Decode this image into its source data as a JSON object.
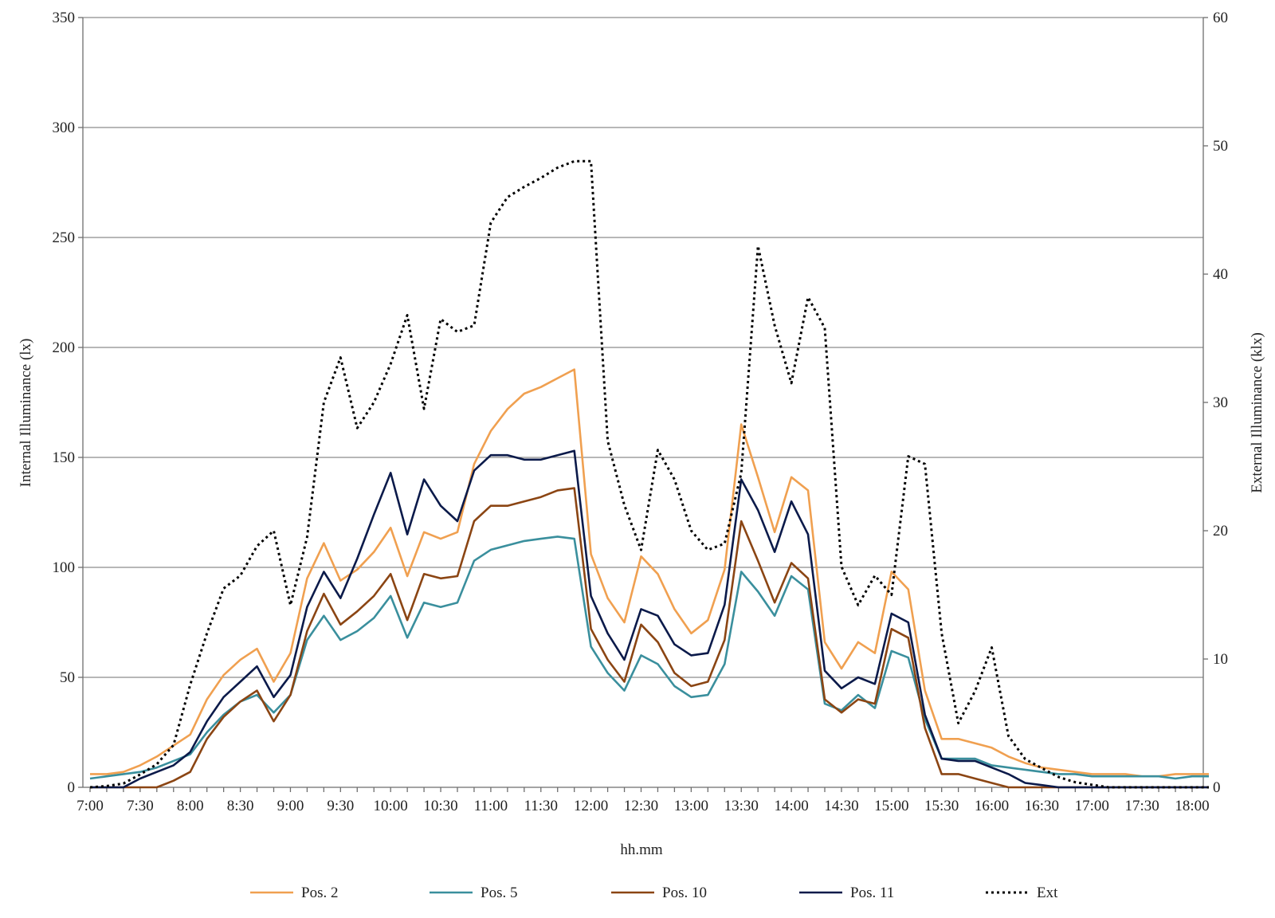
{
  "chart_data": {
    "type": "line",
    "xlabel": "hh.mm",
    "ylabel": "Internal Illuminance (lx)",
    "y2label": "External Illuminance (klx)",
    "ylim": [
      0,
      350
    ],
    "y2lim": [
      0,
      60
    ],
    "yticks": [
      "0",
      "50",
      "100",
      "150",
      "200",
      "250",
      "300",
      "350"
    ],
    "y2ticks": [
      "0",
      "10",
      "20",
      "30",
      "40",
      "50",
      "60"
    ],
    "x_start_min": 420,
    "x_end_min": 1080,
    "x_step_min": 10,
    "xtick_labels": [
      "7:00",
      "7:30",
      "8:00",
      "8:30",
      "9:00",
      "9:30",
      "10:00",
      "10:30",
      "11:00",
      "11:30",
      "12:00",
      "12:30",
      "13:00",
      "13:30",
      "14:00",
      "14:30",
      "15:00",
      "15:30",
      "16:00",
      "16:30",
      "17:00",
      "17:30",
      "18:00"
    ],
    "grid": true,
    "legend_position": "bottom",
    "series": [
      {
        "name": "Pos. 2",
        "axis": "left",
        "color": "#f0a050",
        "style": "solid",
        "values": [
          6,
          6,
          7,
          10,
          14,
          19,
          24,
          40,
          51,
          58,
          63,
          48,
          61,
          95,
          111,
          94,
          99,
          107,
          118,
          96,
          116,
          113,
          116,
          147,
          162,
          172,
          179,
          182,
          186,
          190,
          106,
          86,
          75,
          105,
          97,
          81,
          70,
          76,
          99,
          165,
          141,
          116,
          141,
          135,
          66,
          54,
          66,
          61,
          98,
          90,
          44,
          22,
          22,
          20,
          18,
          14,
          11,
          9,
          8,
          7,
          6,
          6,
          6,
          5,
          5,
          6,
          6,
          6
        ]
      },
      {
        "name": "Pos. 5",
        "axis": "left",
        "color": "#3a8f9d",
        "style": "solid",
        "values": [
          4,
          5,
          6,
          7,
          9,
          12,
          15,
          25,
          33,
          39,
          42,
          34,
          42,
          67,
          78,
          67,
          71,
          77,
          87,
          68,
          84,
          82,
          84,
          103,
          108,
          110,
          112,
          113,
          114,
          113,
          64,
          52,
          44,
          60,
          56,
          46,
          41,
          42,
          56,
          98,
          89,
          78,
          96,
          90,
          38,
          35,
          42,
          36,
          62,
          59,
          31,
          13,
          13,
          13,
          10,
          9,
          8,
          7,
          6,
          6,
          5,
          5,
          5,
          5,
          5,
          4,
          5,
          5
        ]
      },
      {
        "name": "Pos. 10",
        "axis": "left",
        "color": "#8b4513",
        "style": "solid",
        "values": [
          0,
          0,
          0,
          0,
          0,
          3,
          7,
          22,
          32,
          39,
          44,
          30,
          42,
          71,
          88,
          74,
          80,
          87,
          97,
          76,
          97,
          95,
          96,
          121,
          128,
          128,
          130,
          132,
          135,
          136,
          72,
          58,
          48,
          74,
          66,
          52,
          46,
          48,
          67,
          121,
          103,
          84,
          102,
          95,
          40,
          34,
          40,
          38,
          72,
          68,
          27,
          6,
          6,
          4,
          2,
          0,
          0,
          0,
          0,
          0,
          0,
          0,
          0,
          0,
          0,
          0,
          0,
          0
        ]
      },
      {
        "name": "Pos. 11",
        "axis": "left",
        "color": "#0b1a4a",
        "style": "solid",
        "values": [
          0,
          0,
          0,
          4,
          7,
          10,
          16,
          30,
          41,
          48,
          55,
          41,
          51,
          82,
          98,
          86,
          104,
          124,
          143,
          115,
          140,
          128,
          121,
          144,
          151,
          151,
          149,
          149,
          151,
          153,
          87,
          70,
          58,
          81,
          78,
          65,
          60,
          61,
          83,
          140,
          126,
          107,
          130,
          115,
          53,
          45,
          50,
          47,
          79,
          75,
          33,
          13,
          12,
          12,
          9,
          6,
          2,
          1,
          0,
          0,
          0,
          0,
          0,
          0,
          0,
          0,
          0,
          0
        ]
      },
      {
        "name": "Ext",
        "axis": "right",
        "color": "#000000",
        "style": "dotted",
        "values": [
          0,
          0.1,
          0.3,
          1.0,
          1.8,
          3.3,
          8.0,
          12.0,
          15.5,
          16.5,
          18.8,
          20.0,
          14.2,
          19.5,
          30.0,
          33.5,
          28.0,
          30.0,
          33.0,
          36.8,
          29.5,
          36.5,
          35.5,
          36.0,
          44.0,
          46.0,
          46.8,
          47.5,
          48.3,
          48.8,
          48.8,
          27.0,
          22.0,
          18.5,
          26.3,
          24.0,
          20.0,
          18.5,
          19.0,
          24.5,
          42.2,
          36.0,
          31.5,
          38.2,
          35.8,
          17.2,
          14.2,
          16.5,
          15.0,
          25.8,
          25.2,
          12.0,
          5.0,
          7.5,
          10.9,
          4.0,
          2.2,
          1.5,
          0.8,
          0.4,
          0.2,
          0,
          0,
          0,
          0,
          0,
          0,
          0
        ]
      }
    ]
  }
}
